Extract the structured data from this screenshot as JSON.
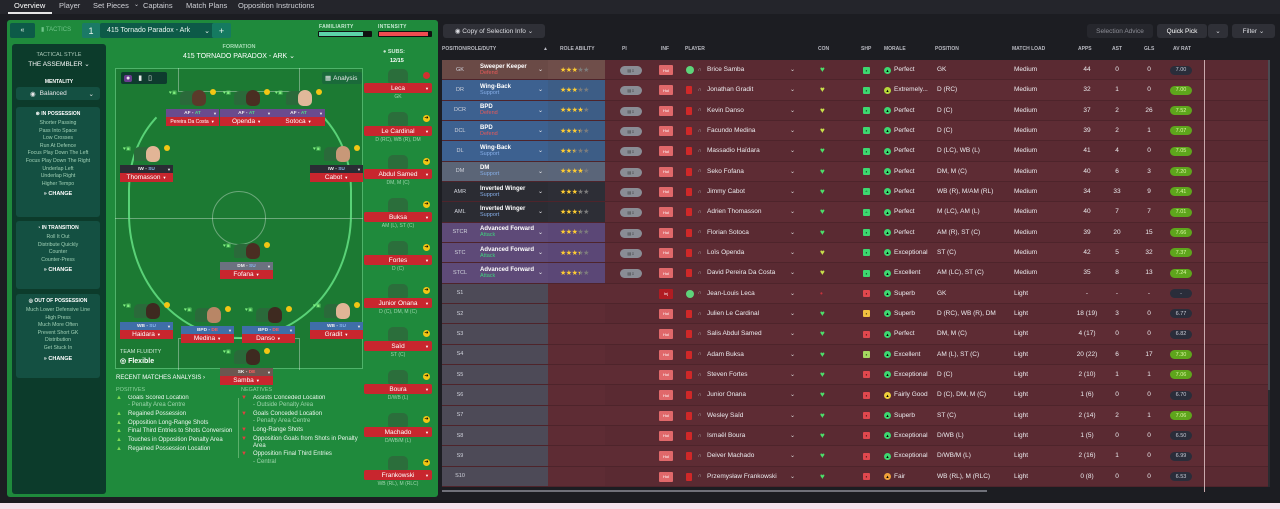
{
  "nav": {
    "tabs": [
      "Overview",
      "Player",
      "Set Pieces",
      "Captains",
      "Match Plans",
      "Opposition Instructions"
    ],
    "active": "Overview",
    "set_pieces_chevron": "chevron-down-icon"
  },
  "tactics_bar": {
    "collapse": "«",
    "tactics_label": "TACTICS",
    "slot": "1",
    "tactic_name": "415 Tornado  Paradox - Ark",
    "add": "+",
    "familiarity_label": "FAMILIARITY",
    "intensity_label": "INTENSITY",
    "familiarity": 0.85,
    "intensity": 0.95
  },
  "sidebar": {
    "style_label": "TACTICAL STYLE",
    "style_value": "THE ASSEMBLER",
    "mentality_label": "MENTALITY",
    "mentality_value": "Balanced",
    "in_possession": {
      "title": "IN POSSESSION",
      "items": [
        "Shorter Passing",
        "Pass Into Space",
        "Low Crosses",
        "Run At Defence",
        "Focus Play Down The Left",
        "Focus Play Down The Right",
        "Underlap Left",
        "Underlap Right",
        "Higher Tempo"
      ],
      "change": "CHANGE"
    },
    "in_transition": {
      "title": "IN TRANSITION",
      "items": [
        "Roll It Out",
        "Distribute Quickly",
        "Counter",
        "Counter-Press"
      ],
      "change": "CHANGE"
    },
    "out_of_possession": {
      "title": "OUT OF POSSESSION",
      "items": [
        "Much Lower Defensive Line",
        "High Press",
        "Much More Often",
        "Prevent Short GK",
        "Distribution",
        "Get Stuck In"
      ],
      "change": "CHANGE"
    }
  },
  "formation": {
    "label": "FORMATION",
    "name": "415 TORNADO  PARADOX - ARK",
    "subs_label": "SUBS:",
    "subs_count": "12/15",
    "analysis": "Analysis",
    "fluidity_label": "TEAM FLUIDITY",
    "fluidity_value": "Flexible"
  },
  "pitch_players": [
    {
      "role": "AF",
      "duty": "AT",
      "name": "Pereira Da Costa",
      "skin": "#5a3a2a"
    },
    {
      "role": "AF",
      "duty": "AT",
      "name": "Openda",
      "skin": "#4a2e22"
    },
    {
      "role": "AF",
      "duty": "AT",
      "name": "Sotoca",
      "skin": "#e0b89a"
    },
    {
      "role": "IW",
      "duty": "SU",
      "name": "Thomasson",
      "skin": "#e2b596"
    },
    {
      "role": "IW",
      "duty": "SU",
      "name": "Cabot",
      "skin": "#c89878"
    },
    {
      "role": "DM",
      "duty": "SU",
      "name": "Fofana",
      "skin": "#4a2e22"
    },
    {
      "role": "WB",
      "duty": "SU",
      "name": "Haidara",
      "skin": "#3e2a20"
    },
    {
      "role": "BPD",
      "duty": "DE",
      "name": "Medina",
      "skin": "#b88666"
    },
    {
      "role": "BPD",
      "duty": "DE",
      "name": "Danso",
      "skin": "#3e2a20"
    },
    {
      "role": "WB",
      "duty": "SU",
      "name": "Gradit",
      "skin": "#e0b596"
    },
    {
      "role": "SK",
      "duty": "DE",
      "name": "Samba",
      "skin": "#3e2a20"
    }
  ],
  "subs": [
    {
      "name": "Leca",
      "pos": "GK"
    },
    {
      "name": "Le Cardinal",
      "pos": "D (RC), WB (R), DM"
    },
    {
      "name": "Abdul Samed",
      "pos": "DM, M (C)"
    },
    {
      "name": "Buksa",
      "pos": "AM (L), ST (C)"
    },
    {
      "name": "Fortes",
      "pos": "D (C)"
    },
    {
      "name": "Junior Onana",
      "pos": "D (C), DM, M (C)"
    },
    {
      "name": "Saïd",
      "pos": "ST (C)"
    },
    {
      "name": "Boura",
      "pos": "D/WB (L)"
    },
    {
      "name": "Machado",
      "pos": "D/WB/M (L)"
    },
    {
      "name": "Frankowski",
      "pos": "WB (RL), M (RLC)"
    }
  ],
  "analysis": {
    "title": "RECENT MATCHES ANALYSIS ›",
    "positives_label": "POSITIVES",
    "negatives_label": "NEGATIVES",
    "positives": [
      {
        "t": "Goals Scored Location",
        "s": "- Penalty Area Centre"
      },
      {
        "t": "Regained Possession"
      },
      {
        "t": "Opposition Long-Range Shots"
      },
      {
        "t": "Final Third Entries to Shots Conversion"
      },
      {
        "t": "Touches in Opposition Penalty Area"
      },
      {
        "t": "Regained Possession Location"
      }
    ],
    "negatives": [
      {
        "t": "Assists Conceded Location",
        "s": "- Outside Penalty Area"
      },
      {
        "t": "Goals Conceded Location",
        "s": "- Penalty Area Centre"
      },
      {
        "t": "Long-Range Shots"
      },
      {
        "t": "Opposition Goals from Shots in Penalty Area"
      },
      {
        "t": "Opposition Final Third Entries",
        "s": "- Central"
      }
    ]
  },
  "toolbar": {
    "view": "Copy of Selection Info",
    "selection_advice": "Selection Advice",
    "quick_pick": "Quick Pick",
    "filter": "Filter"
  },
  "columns": [
    "POSITION/ROLE/DUTY",
    "ROLE ABILITY",
    "PI",
    "INF",
    "PLAYER",
    "CON",
    "SHP",
    "MORALE",
    "POSITION",
    "MATCH LOAD",
    "APPS",
    "AST",
    "GLS",
    "AV RAT"
  ],
  "colors": {
    "defend": "#e85a5a",
    "support": "#86aee8",
    "attack": "#3fd27f",
    "rating_good": "#5ea51c",
    "rating_plain": "#2a2d3a"
  },
  "rows": [
    {
      "pos": "GK",
      "role": "Sweeper Keeper",
      "duty": "Defend",
      "stars": 3,
      "player": "Brice Samba",
      "con": "green",
      "shp": "good",
      "morale": "Perfect",
      "position": "GK",
      "load": "Medium",
      "apps": "44",
      "ast": "0",
      "gls": "0",
      "rat": "7.00",
      "hl": false,
      "group": "gk"
    },
    {
      "pos": "DR",
      "role": "Wing-Back",
      "duty": "Support",
      "stars": 3,
      "player": "Jonathan Gradit",
      "con": "yellow",
      "shp": "good",
      "morale": "Extremely...",
      "position": "D (RC)",
      "load": "Medium",
      "apps": "32",
      "ast": "1",
      "gls": "0",
      "rat": "7.00",
      "hl": true,
      "group": "def"
    },
    {
      "pos": "DCR",
      "role": "BPD",
      "duty": "Defend",
      "stars": 4,
      "player": "Kevin Danso",
      "con": "yellow",
      "shp": "good",
      "morale": "Perfect",
      "position": "D (C)",
      "load": "Medium",
      "apps": "37",
      "ast": "2",
      "gls": "26",
      "rat": "7.52",
      "hl": true,
      "group": "def"
    },
    {
      "pos": "DCL",
      "role": "BPD",
      "duty": "Defend",
      "stars": 3.5,
      "player": "Facundo Medina",
      "con": "yellow",
      "shp": "good",
      "morale": "Perfect",
      "position": "D (C)",
      "load": "Medium",
      "apps": "39",
      "ast": "2",
      "gls": "1",
      "rat": "7.07",
      "hl": true,
      "group": "def"
    },
    {
      "pos": "DL",
      "role": "Wing-Back",
      "duty": "Support",
      "stars": 2.5,
      "player": "Massadio Haïdara",
      "con": "green",
      "shp": "good",
      "morale": "Perfect",
      "position": "D (LC), WB (L)",
      "load": "Medium",
      "apps": "41",
      "ast": "4",
      "gls": "0",
      "rat": "7.05",
      "hl": true,
      "group": "def"
    },
    {
      "pos": "DM",
      "role": "DM",
      "duty": "Support",
      "stars": 4,
      "player": "Seko Fofana",
      "con": "green",
      "shp": "good",
      "morale": "Perfect",
      "position": "DM, M (C)",
      "load": "Medium",
      "apps": "40",
      "ast": "6",
      "gls": "3",
      "rat": "7.20",
      "hl": true,
      "group": "dm"
    },
    {
      "pos": "AMR",
      "role": "Inverted Winger",
      "duty": "Support",
      "stars": 3,
      "player": "Jimmy Cabot",
      "con": "green",
      "shp": "up",
      "morale": "Perfect",
      "position": "WB (R), M/AM (RL)",
      "load": "Medium",
      "apps": "34",
      "ast": "33",
      "gls": "9",
      "rat": "7.41",
      "hl": true,
      "group": "am"
    },
    {
      "pos": "AML",
      "role": "Inverted Winger",
      "duty": "Support",
      "stars": 3.5,
      "player": "Adrien Thomasson",
      "con": "green",
      "shp": "up",
      "morale": "Perfect",
      "position": "M (LC), AM (L)",
      "load": "Medium",
      "apps": "40",
      "ast": "7",
      "gls": "7",
      "rat": "7.01",
      "hl": true,
      "group": "am"
    },
    {
      "pos": "STCR",
      "role": "Advanced Forward",
      "duty": "Attack",
      "stars": 3,
      "player": "Florian Sotoca",
      "con": "green",
      "shp": "good",
      "morale": "Perfect",
      "position": "AM (R), ST (C)",
      "load": "Medium",
      "apps": "39",
      "ast": "20",
      "gls": "15",
      "rat": "7.66",
      "hl": true,
      "group": "st"
    },
    {
      "pos": "STC",
      "role": "Advanced Forward",
      "duty": "Attack",
      "stars": 3.5,
      "player": "Loïs Openda",
      "con": "yellow",
      "shp": "good",
      "morale": "Exceptional",
      "position": "ST (C)",
      "load": "Medium",
      "apps": "42",
      "ast": "5",
      "gls": "32",
      "rat": "7.37",
      "hl": true,
      "group": "st"
    },
    {
      "pos": "STCL",
      "role": "Advanced Forward",
      "duty": "Attack",
      "stars": 3.5,
      "player": "David Pereira Da Costa",
      "con": "yellow",
      "shp": "good",
      "morale": "Excellent",
      "position": "AM (LC), ST (C)",
      "load": "Medium",
      "apps": "35",
      "ast": "8",
      "gls": "13",
      "rat": "7.24",
      "hl": true,
      "group": "st"
    },
    {
      "pos": "S1",
      "player": "Jean-Louis Leca",
      "con": "red",
      "shp": "bad",
      "morale": "Superb",
      "position": "GK",
      "load": "Light",
      "apps": "-",
      "ast": "-",
      "gls": "-",
      "rat": "-",
      "hl": false,
      "group": "sub",
      "inj": true
    },
    {
      "pos": "S2",
      "player": "Julien Le Cardinal",
      "con": "green",
      "shp": "ok",
      "morale": "Superb",
      "position": "D (RC), WB (R), DM",
      "load": "Light",
      "apps": "18 (19)",
      "ast": "3",
      "gls": "0",
      "rat": "6.77",
      "hl": false,
      "group": "sub"
    },
    {
      "pos": "S3",
      "player": "Salis Abdul Samed",
      "con": "green",
      "shp": "bad",
      "morale": "Perfect",
      "position": "DM, M (C)",
      "load": "Light",
      "apps": "4 (17)",
      "ast": "0",
      "gls": "0",
      "rat": "6.82",
      "hl": false,
      "group": "sub"
    },
    {
      "pos": "S4",
      "player": "Adam Buksa",
      "con": "green",
      "shp": "fine",
      "morale": "Excellent",
      "position": "AM (L), ST (C)",
      "load": "Light",
      "apps": "20 (22)",
      "ast": "6",
      "gls": "17",
      "rat": "7.30",
      "hl": true,
      "group": "sub"
    },
    {
      "pos": "S5",
      "player": "Steven Fortes",
      "con": "green",
      "shp": "bad",
      "morale": "Exceptional",
      "position": "D (C)",
      "load": "Light",
      "apps": "2 (10)",
      "ast": "1",
      "gls": "1",
      "rat": "7.06",
      "hl": true,
      "group": "sub"
    },
    {
      "pos": "S6",
      "player": "Junior Onana",
      "con": "green",
      "shp": "bad",
      "morale": "Fairly Good",
      "position": "D (C), DM, M (C)",
      "load": "Light",
      "apps": "1 (6)",
      "ast": "0",
      "gls": "0",
      "rat": "6.70",
      "hl": false,
      "group": "sub"
    },
    {
      "pos": "S7",
      "player": "Wesley Saïd",
      "con": "green",
      "shp": "bad",
      "morale": "Superb",
      "position": "ST (C)",
      "load": "Light",
      "apps": "2 (14)",
      "ast": "2",
      "gls": "1",
      "rat": "7.06",
      "hl": true,
      "group": "sub"
    },
    {
      "pos": "S8",
      "player": "Ismaël Boura",
      "con": "green",
      "shp": "bad",
      "morale": "Exceptional",
      "position": "D/WB (L)",
      "load": "Light",
      "apps": "1 (5)",
      "ast": "0",
      "gls": "0",
      "rat": "6.50",
      "hl": false,
      "group": "sub"
    },
    {
      "pos": "S9",
      "player": "Deiver Machado",
      "con": "green",
      "shp": "bad",
      "morale": "Exceptional",
      "position": "D/WB/M (L)",
      "load": "Light",
      "apps": "2 (16)",
      "ast": "1",
      "gls": "0",
      "rat": "6.99",
      "hl": false,
      "group": "sub"
    },
    {
      "pos": "S10",
      "player": "Przemysław Frankowski",
      "con": "green",
      "shp": "bad",
      "morale": "Fair",
      "position": "WB (RL), M (RLC)",
      "load": "Light",
      "apps": "0 (8)",
      "ast": "0",
      "gls": "0",
      "rat": "6.53",
      "hl": false,
      "group": "sub"
    }
  ],
  "inf_label": "Hol",
  "inf_injured_label": "Inj"
}
